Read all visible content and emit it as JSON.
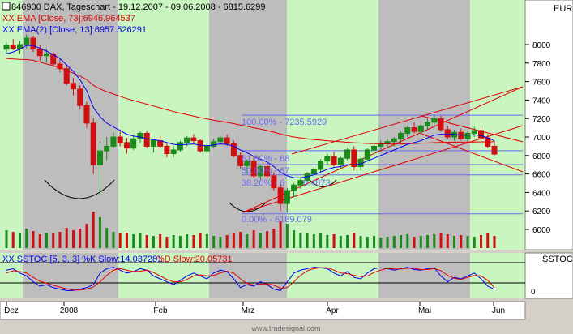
{
  "header": {
    "symbol_line": "846900  DAX, Tageschart - 19.12.2007 - 09.06.2008 - 6815.6299",
    "ema73_line": "XX EMA [Close, 73]:6946.964537",
    "ema13_line": "XX EMA(2) [Close, 13]:6957.526291"
  },
  "price_panel_label": "EUR",
  "stoch_panel_label": "SSTOC",
  "stoch_line_k": "XX SSTOC [5, 3, 3] %K Slow:14.037281",
  "stoch_line_d": "%D Slow:20.05731",
  "footer_credit": "www.tradesignal.com",
  "fib": {
    "l100": "100.00% - 7235.5929",
    "l618": "61.80% - 68",
    "l50": "50.00% - 67",
    "l382": "38.20% - 6",
    "l382b": "6.4873",
    "l0": "0.00% - 6169.079"
  },
  "x_axis": [
    "Dez",
    "2008",
    "Feb",
    "Mrz",
    "Apr",
    "Mai",
    "Jun"
  ],
  "y_axis": [
    "8000",
    "7800",
    "7600",
    "7400",
    "7200",
    "7000",
    "6800",
    "6600",
    "6400",
    "6200",
    "6000"
  ],
  "stoch_axis": [
    "0"
  ],
  "colors": {
    "ema73": "#e00000",
    "ema13": "#0000ee",
    "fib": "#6a6af0",
    "channel": "#e00000",
    "bg_green": "#c8f5c0",
    "bg_grey": "#bdbdbd",
    "candle_green": "#1a8a1a",
    "candle_red": "#d01010"
  },
  "chart_data": {
    "type": "candlestick",
    "title": "846900  DAX, Tageschart - 19.12.2007 - 09.06.2008 - 6815.6299",
    "ylim": [
      5850,
      8150
    ],
    "candles": [
      [
        7950,
        8020,
        7900,
        7990
      ],
      [
        7990,
        8060,
        7940,
        7960
      ],
      [
        7960,
        8040,
        7900,
        8000
      ],
      [
        8000,
        8110,
        7960,
        8070
      ],
      [
        8070,
        8090,
        7920,
        7950
      ],
      [
        7950,
        7990,
        7820,
        7880
      ],
      [
        7880,
        7950,
        7810,
        7900
      ],
      [
        7900,
        7920,
        7760,
        7790
      ],
      [
        7790,
        7850,
        7700,
        7740
      ],
      [
        7740,
        7780,
        7560,
        7580
      ],
      [
        7580,
        7640,
        7450,
        7520
      ],
      [
        7520,
        7560,
        7300,
        7340
      ],
      [
        7340,
        7380,
        7100,
        7150
      ],
      [
        7150,
        7200,
        6600,
        6700
      ],
      [
        6700,
        6950,
        6380,
        6850
      ],
      [
        6850,
        7000,
        6750,
        6900
      ],
      [
        6900,
        7050,
        6880,
        7000
      ],
      [
        7000,
        7080,
        6900,
        6940
      ],
      [
        6940,
        6990,
        6820,
        6880
      ],
      [
        6880,
        7010,
        6860,
        6980
      ],
      [
        6980,
        7060,
        6930,
        7040
      ],
      [
        7040,
        7060,
        6880,
        6900
      ],
      [
        6900,
        6970,
        6830,
        6960
      ],
      [
        6960,
        7010,
        6880,
        6900
      ],
      [
        6900,
        6940,
        6780,
        6820
      ],
      [
        6820,
        6900,
        6780,
        6860
      ],
      [
        6860,
        6960,
        6840,
        6940
      ],
      [
        6940,
        7010,
        6900,
        6990
      ],
      [
        6990,
        7030,
        6930,
        6960
      ],
      [
        6960,
        6980,
        6830,
        6850
      ],
      [
        6850,
        6930,
        6820,
        6900
      ],
      [
        6900,
        6980,
        6880,
        6950
      ],
      [
        6950,
        7010,
        6920,
        6990
      ],
      [
        6990,
        7030,
        6900,
        6930
      ],
      [
        6930,
        6960,
        6780,
        6800
      ],
      [
        6800,
        6840,
        6660,
        6690
      ],
      [
        6690,
        6760,
        6600,
        6740
      ],
      [
        6740,
        6800,
        6560,
        6580
      ],
      [
        6580,
        6700,
        6540,
        6680
      ],
      [
        6680,
        6720,
        6550,
        6580
      ],
      [
        6580,
        6620,
        6420,
        6450
      ],
      [
        6450,
        6500,
        6200,
        6280
      ],
      [
        6280,
        6450,
        6180,
        6420
      ],
      [
        6420,
        6500,
        6350,
        6480
      ],
      [
        6480,
        6560,
        6440,
        6530
      ],
      [
        6530,
        6620,
        6480,
        6600
      ],
      [
        6600,
        6680,
        6550,
        6650
      ],
      [
        6650,
        6760,
        6620,
        6740
      ],
      [
        6740,
        6820,
        6700,
        6790
      ],
      [
        6790,
        6840,
        6680,
        6700
      ],
      [
        6700,
        6790,
        6660,
        6770
      ],
      [
        6770,
        6880,
        6750,
        6860
      ],
      [
        6860,
        6900,
        6640,
        6680
      ],
      [
        6680,
        6780,
        6640,
        6760
      ],
      [
        6760,
        6880,
        6740,
        6860
      ],
      [
        6860,
        6920,
        6820,
        6900
      ],
      [
        6900,
        6960,
        6860,
        6930
      ],
      [
        6930,
        6980,
        6880,
        6950
      ],
      [
        6950,
        7000,
        6900,
        6980
      ],
      [
        6980,
        7060,
        6940,
        7040
      ],
      [
        7040,
        7120,
        7000,
        7100
      ],
      [
        7100,
        7160,
        7040,
        7060
      ],
      [
        7060,
        7140,
        7020,
        7120
      ],
      [
        7120,
        7200,
        7080,
        7160
      ],
      [
        7160,
        7240,
        7120,
        7200
      ],
      [
        7200,
        7230,
        7060,
        7080
      ],
      [
        7080,
        7120,
        6980,
        7000
      ],
      [
        7000,
        7080,
        6960,
        7050
      ],
      [
        7050,
        7090,
        6960,
        6980
      ],
      [
        6980,
        7060,
        6940,
        7040
      ],
      [
        7040,
        7110,
        7000,
        7070
      ],
      [
        7070,
        7100,
        6960,
        6990
      ],
      [
        6990,
        7030,
        6880,
        6900
      ],
      [
        6900,
        6960,
        6800,
        6815
      ]
    ],
    "ema73": [
      7850,
      7845,
      7840,
      7838,
      7830,
      7810,
      7790,
      7770,
      7750,
      7720,
      7690,
      7660,
      7620,
      7560,
      7520,
      7490,
      7465,
      7440,
      7415,
      7395,
      7375,
      7355,
      7335,
      7315,
      7295,
      7275,
      7258,
      7242,
      7226,
      7210,
      7196,
      7182,
      7170,
      7158,
      7145,
      7130,
      7116,
      7100,
      7086,
      7070,
      7052,
      7032,
      7015,
      7000,
      6990,
      6980,
      6972,
      6966,
      6960,
      6954,
      6948,
      6943,
      6938,
      6934,
      6930,
      6928,
      6926,
      6925,
      6924,
      6925,
      6927,
      6929,
      6932,
      6935,
      6939,
      6941,
      6942,
      6944,
      6944,
      6945,
      6946,
      6947,
      6947,
      6947
    ],
    "ema13": [
      7900,
      7920,
      7950,
      7990,
      7990,
      7960,
      7930,
      7890,
      7850,
      7780,
      7710,
      7620,
      7500,
      7320,
      7220,
      7150,
      7110,
      7070,
      7030,
      7010,
      7000,
      6980,
      6970,
      6960,
      6940,
      6920,
      6915,
      6920,
      6925,
      6910,
      6905,
      6915,
      6925,
      6920,
      6900,
      6860,
      6830,
      6790,
      6760,
      6730,
      6680,
      6620,
      6580,
      6560,
      6560,
      6570,
      6590,
      6620,
      6650,
      6670,
      6680,
      6700,
      6700,
      6710,
      6740,
      6770,
      6800,
      6830,
      6860,
      6890,
      6920,
      6940,
      6960,
      6990,
      7020,
      7030,
      7030,
      7030,
      7020,
      7020,
      7025,
      7015,
      6990,
      6958
    ],
    "stoch_k": [
      80,
      85,
      70,
      60,
      40,
      25,
      30,
      20,
      15,
      10,
      10,
      15,
      20,
      30,
      70,
      85,
      90,
      80,
      70,
      75,
      85,
      80,
      60,
      50,
      40,
      30,
      45,
      60,
      70,
      60,
      50,
      70,
      80,
      75,
      50,
      20,
      30,
      25,
      40,
      30,
      15,
      10,
      40,
      70,
      80,
      85,
      90,
      88,
      85,
      70,
      60,
      75,
      55,
      50,
      70,
      85,
      88,
      85,
      80,
      85,
      90,
      82,
      80,
      85,
      88,
      60,
      40,
      55,
      50,
      60,
      70,
      50,
      25,
      14
    ],
    "stoch_d": [
      70,
      78,
      75,
      70,
      55,
      42,
      35,
      28,
      22,
      16,
      12,
      12,
      15,
      22,
      40,
      62,
      80,
      85,
      80,
      75,
      76,
      80,
      72,
      60,
      48,
      40,
      40,
      48,
      60,
      64,
      60,
      62,
      70,
      76,
      70,
      50,
      35,
      28,
      32,
      33,
      28,
      18,
      20,
      40,
      62,
      78,
      85,
      88,
      88,
      80,
      70,
      68,
      62,
      58,
      60,
      72,
      80,
      86,
      84,
      84,
      86,
      86,
      82,
      82,
      85,
      78,
      62,
      52,
      48,
      55,
      62,
      60,
      45,
      20
    ],
    "volume": [
      22,
      20,
      18,
      24,
      21,
      17,
      19,
      18,
      20,
      25,
      22,
      24,
      30,
      45,
      38,
      25,
      20,
      18,
      19,
      17,
      18,
      16,
      15,
      17,
      14,
      16,
      15,
      17,
      16,
      18,
      17,
      15,
      14,
      16,
      18,
      20,
      17,
      22,
      19,
      21,
      24,
      34,
      30,
      22,
      19,
      18,
      17,
      18,
      16,
      17,
      15,
      16,
      19,
      15,
      14,
      15,
      13,
      14,
      15,
      16,
      17,
      14,
      15,
      16,
      17,
      18,
      17,
      15,
      16,
      15,
      14,
      16,
      18,
      15
    ]
  }
}
